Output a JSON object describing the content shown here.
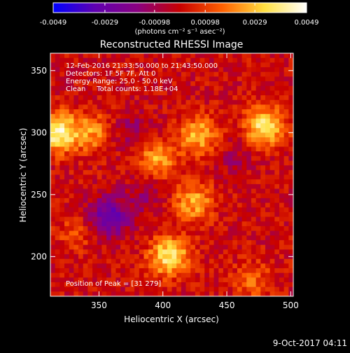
{
  "chart_data": {
    "type": "heatmap",
    "title": "Reconstructed RHESSI Image",
    "xlabel": "Heliocentric X (arcsec)",
    "ylabel": "Heliocentric Y (arcsec)",
    "xlim": [
      312,
      502
    ],
    "ylim": [
      168,
      364
    ],
    "x_ticks": [
      350,
      400,
      450,
      500
    ],
    "y_ticks": [
      200,
      250,
      300,
      350
    ],
    "annotations": [
      "12-Feb-2016 21:33:50.000 to 21:43:50.000",
      "Detectors: 1F 5F 7F, Att 0",
      "Energy Range: 25.0 - 50.0 keV",
      "Clean     Total counts: 1.18E+04"
    ],
    "peak_label": "Position of Peak = [31 279]",
    "colorbar": {
      "tick_labels": [
        "-0.0049",
        "-0.0029",
        "-0.00098",
        "0.00098",
        "0.0029",
        "0.0049"
      ],
      "tick_values": [
        -0.0049,
        -0.0029,
        -0.00098,
        0.00098,
        0.0029,
        0.0049
      ],
      "range": [
        -0.0049,
        0.0049
      ],
      "unit_label": "(photons cm⁻² s⁻¹ asec⁻²)",
      "colors": [
        "#0000ff",
        "#6000b0",
        "#8a0080",
        "#c80000",
        "#ff6000",
        "#ffe040",
        "#ffffff"
      ]
    },
    "sources": [
      {
        "x": 318,
        "y": 300,
        "intensity": 0.0042
      },
      {
        "x": 345,
        "y": 300,
        "intensity": 0.0022
      },
      {
        "x": 395,
        "y": 278,
        "intensity": 0.0026
      },
      {
        "x": 428,
        "y": 298,
        "intensity": 0.0028
      },
      {
        "x": 424,
        "y": 244,
        "intensity": 0.0026
      },
      {
        "x": 405,
        "y": 200,
        "intensity": 0.0038
      },
      {
        "x": 480,
        "y": 305,
        "intensity": 0.0038
      },
      {
        "x": 470,
        "y": 180,
        "intensity": 0.0015
      },
      {
        "x": 332,
        "y": 220,
        "intensity": 0.0012
      },
      {
        "x": 358,
        "y": 232,
        "intensity": -0.003
      },
      {
        "x": 375,
        "y": 300,
        "intensity": -0.0012
      },
      {
        "x": 387,
        "y": 250,
        "intensity": -0.001
      },
      {
        "x": 455,
        "y": 280,
        "intensity": -0.0008
      }
    ]
  },
  "footer": {
    "date": "9-Oct-2017 04:11"
  }
}
